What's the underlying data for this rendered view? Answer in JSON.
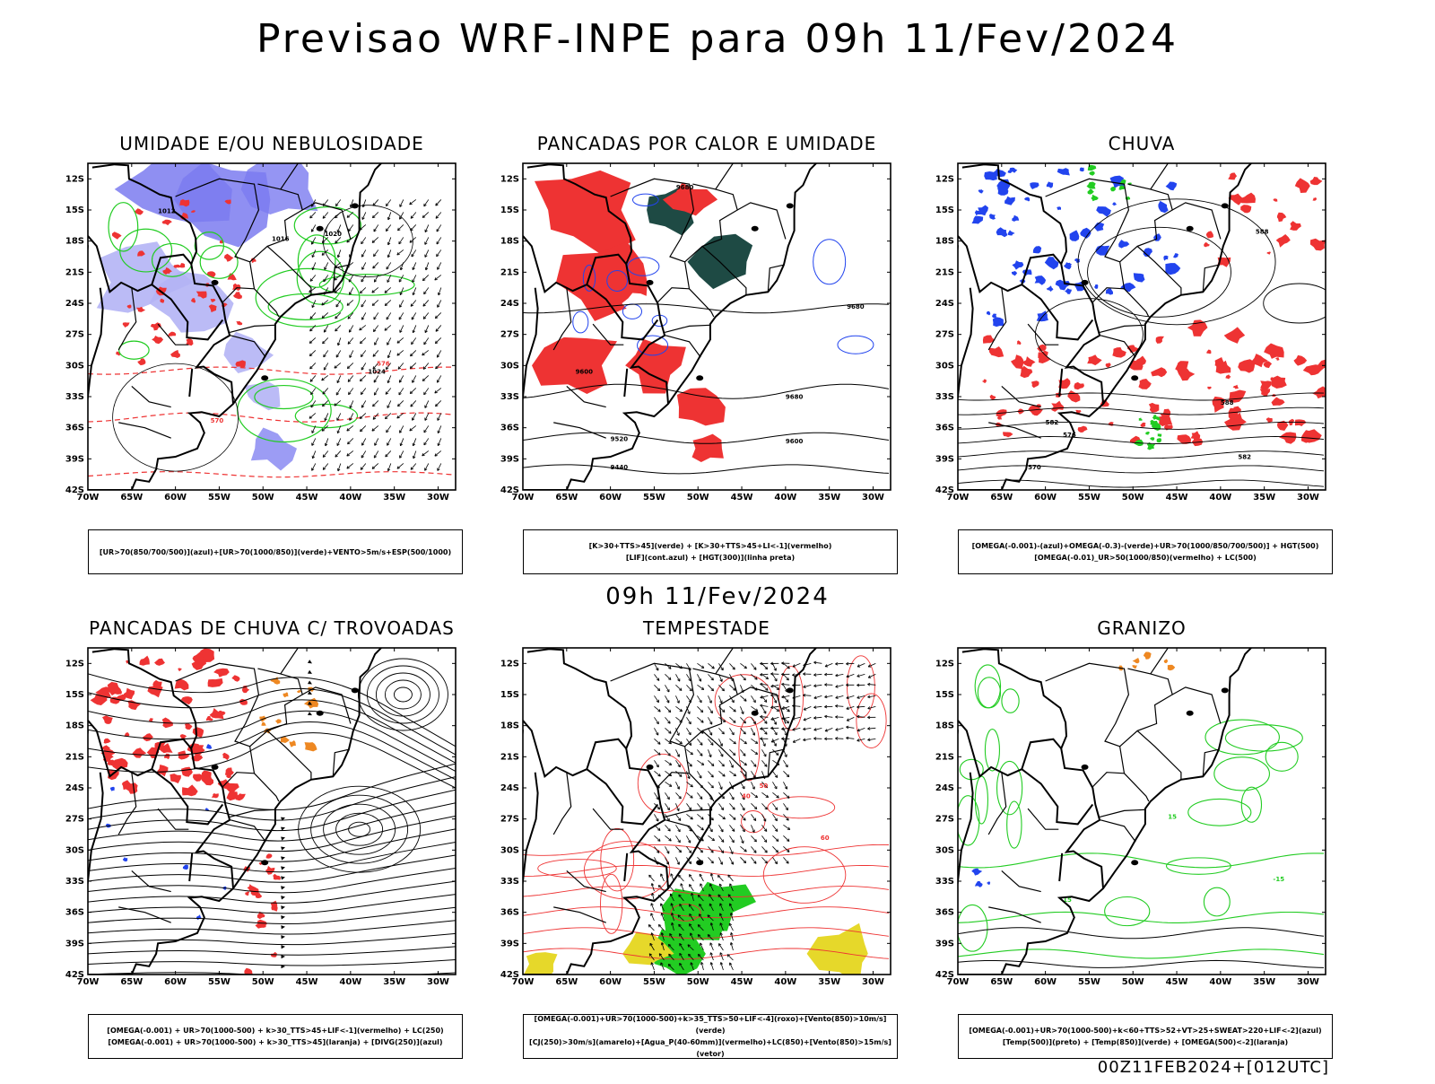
{
  "title": "Previsao WRF-INPE  para 09h 11/Fev/2024",
  "mid_date": "09h 11/Fev/2024",
  "footer": "00Z11FEB2024+[012UTC]",
  "axes": {
    "lat_ticks": [
      "12S",
      "15S",
      "18S",
      "21S",
      "24S",
      "27S",
      "30S",
      "33S",
      "36S",
      "39S",
      "42S"
    ],
    "lon_ticks": [
      "70W",
      "65W",
      "60W",
      "55W",
      "50W",
      "45W",
      "40W",
      "35W",
      "30W"
    ]
  },
  "panels": [
    {
      "title": "UMIDADE E/OU NEBULOSIDADE",
      "legend": [
        "[UR>70(850/700/500)](azul)+[UR>70(1000/850)](verde)+VENTO>5m/s+ESP(500/1000)"
      ],
      "contour_labels": [
        "1012",
        "1016",
        "1020",
        "1024",
        "576",
        "570"
      ]
    },
    {
      "title": "PANCADAS POR CALOR E UMIDADE",
      "legend": [
        "[K>30+TTS>45](verde) + [K>30+TTS>45+LI<-1](vermelho)",
        "[LIF](cont.azul) + [HGT(300)](linha preta)"
      ],
      "contour_labels": [
        "9680",
        "9600",
        "9520",
        "9440"
      ]
    },
    {
      "title": "CHUVA",
      "legend": [
        "[OMEGA(-0.001)-(azul)+OMEGA(-0.3)-(verde)+UR>70(1000/850/700/500)] + HGT(500)",
        "[OMEGA(-0.01)_UR>50(1000/850)(vermelho) + LC(500)"
      ],
      "contour_labels": [
        "588",
        "582",
        "576",
        "570"
      ]
    },
    {
      "title": "PANCADAS DE CHUVA C/ TROVOADAS",
      "legend": [
        "[OMEGA(-0.001) + UR>70(1000-500) + k>30_TTS>45+LIF<-1](vermelho) + LC(250)",
        "[OMEGA(-0.001) + UR>70(1000-500) + k>30_TTS>45](laranja) + [DIVG(250)](azul)"
      ],
      "contour_labels": []
    },
    {
      "title": "TEMPESTADE",
      "legend": [
        "[OMEGA(-0.001)+UR>70(1000-500)+k>35_TTS>50+LIF<-4](roxo)+[Vento(850)>10m/s](verde)",
        "[CJ(250)>30m/s](amarelo)+[Agua_P(40-60mm)](vermelho)+LC(850)+[Vento(850)>15m/s](vetor)"
      ],
      "contour_labels": [
        "40",
        "50",
        "60"
      ]
    },
    {
      "title": "GRANIZO",
      "legend": [
        "[OMEGA(-0.001)+UR>70(1000-500)+k<60+TTS>52+VT>25+SWEAT>220+LIF<-2](azul)",
        "[Temp(500)](preto) + [Temp(850)](verde) + [OMEGA(500)<-2](laranja)"
      ],
      "contour_labels": [
        "-15",
        "15"
      ]
    }
  ],
  "colors": {
    "blue_fill": "#7b7bf0",
    "light_blue_fill": "#b4b4f5",
    "green": "#22cc22",
    "red": "#ee3333",
    "orange": "#ee8822",
    "dark_teal": "#1e4a44",
    "yellow": "#e6d82a",
    "blue_line": "#2244ee"
  }
}
